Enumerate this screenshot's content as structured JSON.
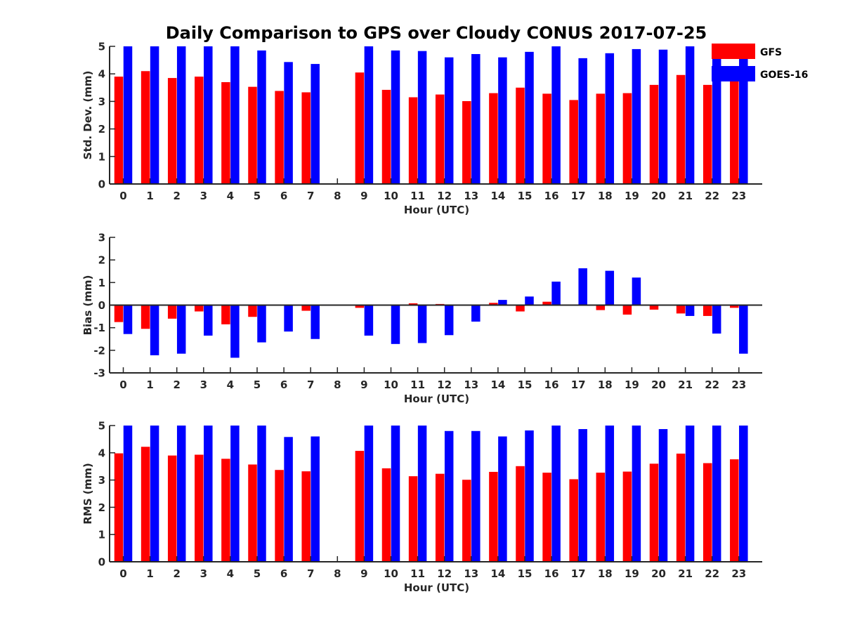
{
  "figure": {
    "title": "Daily Comparison to GPS over Cloudy CONUS 2017-07-25"
  },
  "legend": {
    "placement": "top-right",
    "entries": [
      {
        "label": "GFS",
        "color": "#ff0000"
      },
      {
        "label": "GOES-16",
        "color": "#0000ff"
      }
    ]
  },
  "chart_data": [
    {
      "type": "bar",
      "title": "Daily Comparison to GPS over Cloudy CONUS 2017-07-25",
      "xlabel": "Hour (UTC)",
      "ylabel": "Std. Dev. (mm)",
      "ylim": [
        0,
        5
      ],
      "yticks": [
        0,
        1,
        2,
        3,
        4,
        5
      ],
      "grid": false,
      "categories": [
        "0",
        "1",
        "2",
        "3",
        "4",
        "5",
        "6",
        "7",
        "8",
        "9",
        "10",
        "11",
        "12",
        "13",
        "14",
        "15",
        "16",
        "17",
        "18",
        "19",
        "20",
        "21",
        "22",
        "23"
      ],
      "series": [
        {
          "name": "GFS",
          "color": "#ff0000",
          "values": [
            3.9,
            4.1,
            3.85,
            3.9,
            3.7,
            3.53,
            3.38,
            3.33,
            null,
            4.05,
            3.42,
            3.15,
            3.25,
            3.01,
            3.3,
            3.5,
            3.28,
            3.05,
            3.28,
            3.3,
            3.6,
            3.96,
            3.6,
            3.75
          ]
        },
        {
          "name": "GOES-16",
          "color": "#0000ff",
          "values": [
            5,
            5,
            5,
            5,
            5,
            4.85,
            4.43,
            4.36,
            null,
            5,
            4.85,
            4.83,
            4.6,
            4.72,
            4.6,
            4.8,
            5,
            4.57,
            4.75,
            4.9,
            4.88,
            5,
            4.85,
            4.7
          ]
        }
      ]
    },
    {
      "type": "bar",
      "xlabel": "Hour (UTC)",
      "ylabel": "Bias (mm)",
      "ylim": [
        -3,
        3
      ],
      "yticks": [
        -3,
        -2,
        -1,
        0,
        1,
        2,
        3
      ],
      "grid": false,
      "categories": [
        "0",
        "1",
        "2",
        "3",
        "4",
        "5",
        "6",
        "7",
        "8",
        "9",
        "10",
        "11",
        "12",
        "13",
        "14",
        "15",
        "16",
        "17",
        "18",
        "19",
        "20",
        "21",
        "22",
        "23"
      ],
      "series": [
        {
          "name": "GFS",
          "color": "#ff0000",
          "values": [
            -0.75,
            -1.05,
            -0.6,
            -0.28,
            -0.85,
            -0.52,
            0.02,
            -0.25,
            null,
            -0.12,
            0,
            0.08,
            0.05,
            -0.02,
            0.1,
            -0.28,
            0.15,
            0,
            -0.22,
            -0.42,
            -0.2,
            -0.37,
            -0.48,
            -0.12
          ]
        },
        {
          "name": "GOES-16",
          "color": "#0000ff",
          "values": [
            -1.28,
            -2.22,
            -2.15,
            -1.35,
            -2.33,
            -1.65,
            -1.17,
            -1.5,
            null,
            -1.35,
            -1.72,
            -1.68,
            -1.33,
            -0.73,
            0.23,
            0.38,
            1.04,
            1.63,
            1.52,
            1.22,
            -0.02,
            -0.48,
            -1.26,
            -2.15
          ]
        }
      ]
    },
    {
      "type": "bar",
      "xlabel": "Hour (UTC)",
      "ylabel": "RMS (mm)",
      "ylim": [
        0,
        5
      ],
      "yticks": [
        0,
        1,
        2,
        3,
        4,
        5
      ],
      "grid": false,
      "categories": [
        "0",
        "1",
        "2",
        "3",
        "4",
        "5",
        "6",
        "7",
        "8",
        "9",
        "10",
        "11",
        "12",
        "13",
        "14",
        "15",
        "16",
        "17",
        "18",
        "19",
        "20",
        "21",
        "22",
        "23"
      ],
      "series": [
        {
          "name": "GFS",
          "color": "#ff0000",
          "values": [
            3.98,
            4.22,
            3.9,
            3.93,
            3.78,
            3.57,
            3.37,
            3.32,
            null,
            4.07,
            3.43,
            3.14,
            3.23,
            3.01,
            3.3,
            3.51,
            3.27,
            3.03,
            3.27,
            3.31,
            3.6,
            3.97,
            3.62,
            3.76
          ]
        },
        {
          "name": "GOES-16",
          "color": "#0000ff",
          "values": [
            5,
            5,
            5,
            5,
            5,
            5,
            4.58,
            4.6,
            null,
            5,
            5,
            5,
            4.8,
            4.8,
            4.6,
            4.82,
            5,
            4.87,
            5,
            5,
            4.87,
            5,
            5,
            5
          ]
        }
      ]
    }
  ]
}
